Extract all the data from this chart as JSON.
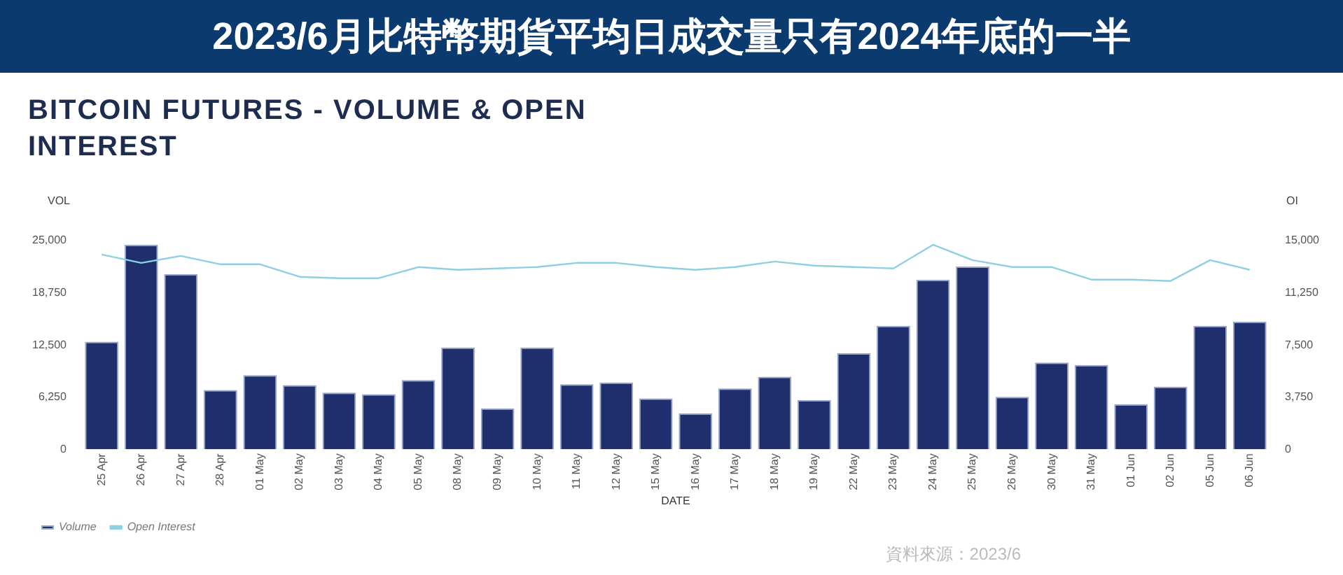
{
  "chart_data": {
    "type": "bar",
    "title": "2023/6月比特幣期貨平均日成交量只有2024年底的一半",
    "subtitle": "BITCOIN FUTURES - VOLUME & OPEN INTEREST",
    "xlabel": "DATE",
    "ylabel": "VOL",
    "y2label": "OI",
    "categories": [
      "25 Apr",
      "26 Apr",
      "27 Apr",
      "28 Apr",
      "01 May",
      "02 May",
      "03 May",
      "04 May",
      "05 May",
      "08 May",
      "09 May",
      "10 May",
      "11 May",
      "12 May",
      "15 May",
      "16 May",
      "17 May",
      "18 May",
      "19 May",
      "22 May",
      "23 May",
      "24 May",
      "25 May",
      "26 May",
      "30 May",
      "31 May",
      "01 Jun",
      "02 Jun",
      "05 Jun",
      "06 Jun"
    ],
    "series": [
      {
        "name": "Volume",
        "color": "#1f2f6e",
        "values": [
          12900,
          24500,
          21000,
          7100,
          8900,
          7700,
          6800,
          6600,
          8300,
          12200,
          4900,
          12200,
          7800,
          8000,
          6100,
          4300,
          7300,
          8700,
          5900,
          11500,
          14800,
          20300,
          21900,
          6300,
          10400,
          10100,
          5400,
          7500,
          14800,
          15300
        ]
      },
      {
        "name": "Open Interest",
        "type": "line",
        "axis": "y2",
        "color": "#8ecfe0",
        "values": [
          14000,
          13400,
          13900,
          13300,
          13300,
          12400,
          12300,
          12300,
          13100,
          12900,
          13000,
          13100,
          13400,
          13400,
          13100,
          12900,
          13100,
          13500,
          13200,
          13100,
          13000,
          14700,
          13600,
          13100,
          13100,
          12200,
          12200,
          12100,
          13600,
          12900
        ]
      }
    ],
    "ylim": [
      0,
      25000
    ],
    "yticks": [
      {
        "value": 0,
        "label": "0"
      },
      {
        "value": 6250,
        "label": "6,250"
      },
      {
        "value": 12500,
        "label": "12,500"
      },
      {
        "value": 18750,
        "label": "18,750"
      },
      {
        "value": 25000,
        "label": "25,000"
      }
    ],
    "y2lim": [
      0,
      15000
    ],
    "y2ticks": [
      {
        "value": 0,
        "label": "0"
      },
      {
        "value": 3750,
        "label": "3,750"
      },
      {
        "value": 7500,
        "label": "7,500"
      },
      {
        "value": 11250,
        "label": "11,250"
      },
      {
        "value": 15000,
        "label": "15,000"
      }
    ],
    "grid": false,
    "legend": "bottom left",
    "marker": "none",
    "annotations": [
      "資料來源：2023/6"
    ]
  }
}
